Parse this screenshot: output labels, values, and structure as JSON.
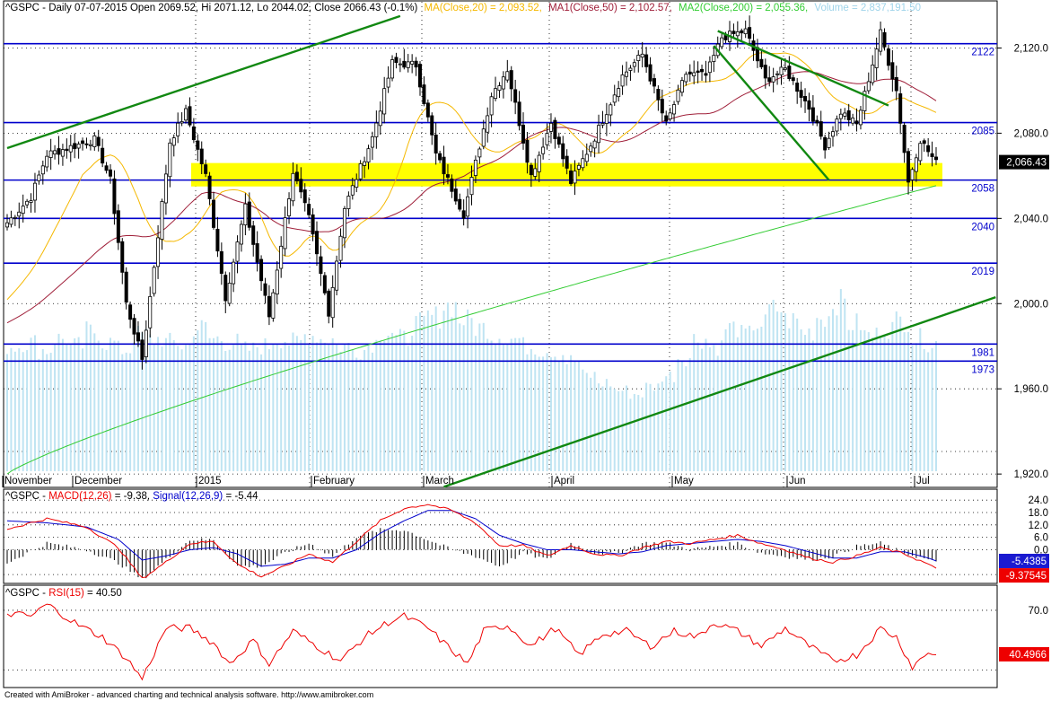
{
  "header": {
    "ticker": "^GSPC",
    "text": "^GSPC - Daily 07-07-2015 Open 2069.52, Hi 2071.12, Lo 2044.02, Close 2066.43 (-0.1%)",
    "ma20": "MA(Close,20) = 2,093.52,",
    "ma50": "MA1(Close,50) = 2,102.57,",
    "ma200": "MA2(Close,200) = 2,055.36,",
    "volume": "Volume = 2,837,191.50"
  },
  "colors": {
    "bull": "#ffffff",
    "bear": "#000000",
    "ma20": "#f5b800",
    "ma50": "#a0203a",
    "ma200": "#33cc33",
    "trend": "#118811",
    "hline": "#0000cc",
    "volume": "#bfe4f2",
    "zone": "#ffff00",
    "macd": "#0000cc",
    "signal": "#ee0000",
    "rsi": "#ee0000"
  },
  "footer": "Created with AmiBroker - advanced charting and technical analysis software. http://www.amibroker.com",
  "chart_data": [
    {
      "type": "candlestick",
      "panel": "price",
      "ylim": [
        1915,
        2140
      ],
      "y_ticks": [
        "2,120.0",
        "2,080.0",
        "2,040.0",
        "2,000.0",
        "1,960.0",
        "1,920.0"
      ],
      "x_labels": [
        "November",
        "December",
        "2015",
        "February",
        "March",
        "April",
        "May",
        "Jun",
        "Jul"
      ],
      "last_value": "2,066.43",
      "horizontal_lines": [
        {
          "value": 2122,
          "label": "2122"
        },
        {
          "value": 2085,
          "label": "2085"
        },
        {
          "value": 2058,
          "label": "2058"
        },
        {
          "value": 2040,
          "label": "2040"
        },
        {
          "value": 2019,
          "label": "2019"
        },
        {
          "value": 1981,
          "label": "1981"
        },
        {
          "value": 1973,
          "label": "1973"
        }
      ],
      "support_zone": [
        2055,
        2066
      ],
      "trendlines_bar_index": [
        {
          "from": [
            0,
            2073
          ],
          "to": [
            99,
            2135
          ]
        },
        {
          "from": [
            110,
            1914
          ],
          "to": [
            249,
            2003
          ]
        },
        {
          "from": [
            179,
            2128
          ],
          "to": [
            222,
            2093
          ]
        },
        {
          "from": [
            178,
            2121
          ],
          "to": [
            207,
            2058
          ]
        }
      ],
      "anchors": [
        [
          0,
          2038
        ],
        [
          6,
          2050
        ],
        [
          10,
          2070
        ],
        [
          22,
          2077
        ],
        [
          26,
          2058
        ],
        [
          30,
          2000
        ],
        [
          34,
          1974
        ],
        [
          41,
          2076
        ],
        [
          45,
          2090
        ],
        [
          50,
          2060
        ],
        [
          55,
          2003
        ],
        [
          60,
          2045
        ],
        [
          66,
          1994
        ],
        [
          72,
          2062
        ],
        [
          76,
          2040
        ],
        [
          81,
          1996
        ],
        [
          85,
          2045
        ],
        [
          92,
          2078
        ],
        [
          97,
          2113
        ],
        [
          103,
          2112
        ],
        [
          108,
          2070
        ],
        [
          115,
          2042
        ],
        [
          122,
          2098
        ],
        [
          126,
          2110
        ],
        [
          132,
          2060
        ],
        [
          137,
          2085
        ],
        [
          142,
          2057
        ],
        [
          148,
          2078
        ],
        [
          155,
          2107
        ],
        [
          160,
          2117
        ],
        [
          166,
          2084
        ],
        [
          171,
          2108
        ],
        [
          176,
          2107
        ],
        [
          180,
          2125
        ],
        [
          186,
          2128
        ],
        [
          191,
          2105
        ],
        [
          196,
          2110
        ],
        [
          202,
          2092
        ],
        [
          206,
          2074
        ],
        [
          210,
          2090
        ],
        [
          214,
          2084
        ],
        [
          220,
          2127
        ],
        [
          224,
          2100
        ],
        [
          227,
          2057
        ],
        [
          230,
          2077
        ],
        [
          234,
          2066
        ]
      ],
      "volume_millions": [
        3.4,
        3.5,
        3.3,
        3.6,
        3.4,
        3.8,
        3.5,
        3.3,
        3.7,
        3.6,
        3.5,
        3.4,
        3.9,
        3.6,
        3.5,
        3.3,
        3.4,
        3.6,
        3.5,
        3.7,
        3.6,
        3.4,
        3.3,
        3.5,
        3.8,
        3.6,
        4.0,
        4.2,
        4.5,
        4.1,
        3.9,
        3.7,
        3.6,
        3.4,
        3.3,
        3.2,
        3.0,
        2.6,
        2.4,
        2.2,
        2.1,
        2.3,
        2.6,
        3.1,
        3.6,
        3.4,
        3.9,
        3.7,
        4.0,
        4.4,
        4.1,
        3.8,
        4.2,
        4.6,
        4.0,
        3.7,
        3.9,
        4.1,
        3.6,
        3.5
      ]
    },
    {
      "type": "line",
      "panel": "macd",
      "title": "^GSPC - MACD(12,26) = -9.38, Signal(12,26,9) = -5.44",
      "title_parts": [
        "^GSPC - ",
        "MACD(12,26)",
        " = -9.38, ",
        "Signal(12,26,9)",
        " = -5.44"
      ],
      "y_ticks": [
        "24.0",
        "18.0",
        "12.0",
        "6.0",
        "0.0",
        "-12.0"
      ],
      "ylim": [
        -15,
        28
      ],
      "last_macd": "-9.37545",
      "last_signal": "-5.4385",
      "macd_anchors": [
        [
          0,
          10
        ],
        [
          10,
          15
        ],
        [
          20,
          11
        ],
        [
          28,
          1
        ],
        [
          34,
          -14
        ],
        [
          40,
          -6
        ],
        [
          46,
          3
        ],
        [
          52,
          4
        ],
        [
          58,
          -7
        ],
        [
          64,
          -13
        ],
        [
          70,
          -8
        ],
        [
          76,
          -2
        ],
        [
          82,
          -6
        ],
        [
          88,
          4
        ],
        [
          94,
          14
        ],
        [
          100,
          20
        ],
        [
          106,
          22
        ],
        [
          112,
          19
        ],
        [
          118,
          13
        ],
        [
          124,
          2
        ],
        [
          130,
          2
        ],
        [
          136,
          -3
        ],
        [
          142,
          2
        ],
        [
          148,
          -2
        ],
        [
          154,
          -3
        ],
        [
          160,
          1
        ],
        [
          166,
          4
        ],
        [
          172,
          3
        ],
        [
          178,
          5
        ],
        [
          184,
          7
        ],
        [
          190,
          3
        ],
        [
          196,
          0
        ],
        [
          202,
          -4
        ],
        [
          208,
          -6
        ],
        [
          214,
          -3
        ],
        [
          220,
          1
        ],
        [
          226,
          -2
        ],
        [
          232,
          -7
        ],
        [
          234,
          -9.4
        ]
      ],
      "signal_anchors": [
        [
          0,
          14
        ],
        [
          10,
          13
        ],
        [
          20,
          11
        ],
        [
          28,
          5
        ],
        [
          34,
          -5
        ],
        [
          40,
          -3
        ],
        [
          46,
          0
        ],
        [
          52,
          1
        ],
        [
          58,
          -2
        ],
        [
          64,
          -8
        ],
        [
          70,
          -7
        ],
        [
          76,
          -4
        ],
        [
          82,
          -4
        ],
        [
          88,
          0
        ],
        [
          94,
          8
        ],
        [
          100,
          14
        ],
        [
          106,
          19
        ],
        [
          112,
          19
        ],
        [
          118,
          15
        ],
        [
          124,
          7
        ],
        [
          130,
          3
        ],
        [
          136,
          0
        ],
        [
          142,
          0
        ],
        [
          148,
          -1
        ],
        [
          154,
          -2
        ],
        [
          160,
          -1
        ],
        [
          166,
          2
        ],
        [
          172,
          3
        ],
        [
          178,
          4
        ],
        [
          184,
          5
        ],
        [
          190,
          4
        ],
        [
          196,
          2
        ],
        [
          202,
          -1
        ],
        [
          208,
          -4
        ],
        [
          214,
          -4
        ],
        [
          220,
          -1
        ],
        [
          226,
          -1
        ],
        [
          232,
          -4
        ],
        [
          234,
          -5.4
        ]
      ]
    },
    {
      "type": "line",
      "panel": "rsi",
      "title": "^GSPC - RSI(15) = 40.50",
      "title_parts": [
        "^GSPC - ",
        "RSI(15)",
        " = 40.50"
      ],
      "y_ticks": [
        "70.0"
      ],
      "ylim": [
        20,
        85
      ],
      "last_value": "40.4966",
      "rsi_anchors": [
        [
          0,
          68
        ],
        [
          6,
          66
        ],
        [
          10,
          74
        ],
        [
          18,
          60
        ],
        [
          24,
          52
        ],
        [
          30,
          38
        ],
        [
          34,
          24
        ],
        [
          40,
          58
        ],
        [
          46,
          58
        ],
        [
          52,
          48
        ],
        [
          56,
          34
        ],
        [
          62,
          50
        ],
        [
          66,
          34
        ],
        [
          72,
          56
        ],
        [
          78,
          46
        ],
        [
          84,
          36
        ],
        [
          90,
          52
        ],
        [
          96,
          62
        ],
        [
          100,
          66
        ],
        [
          106,
          58
        ],
        [
          110,
          48
        ],
        [
          116,
          34
        ],
        [
          120,
          56
        ],
        [
          126,
          60
        ],
        [
          132,
          46
        ],
        [
          138,
          58
        ],
        [
          144,
          40
        ],
        [
          150,
          54
        ],
        [
          156,
          56
        ],
        [
          162,
          46
        ],
        [
          168,
          56
        ],
        [
          174,
          52
        ],
        [
          178,
          62
        ],
        [
          184,
          56
        ],
        [
          190,
          46
        ],
        [
          196,
          58
        ],
        [
          202,
          46
        ],
        [
          208,
          36
        ],
        [
          214,
          40
        ],
        [
          220,
          58
        ],
        [
          224,
          52
        ],
        [
          228,
          32
        ],
        [
          232,
          42
        ],
        [
          234,
          40.5
        ]
      ]
    }
  ]
}
